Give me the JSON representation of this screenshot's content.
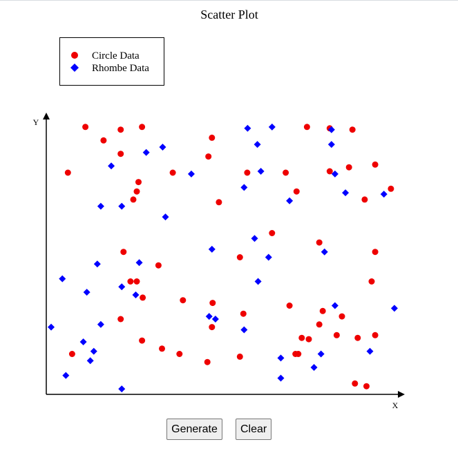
{
  "chart_data": {
    "type": "scatter",
    "title": "Scatter Plot",
    "xlabel": "X",
    "ylabel": "Y",
    "xlim": [
      0,
      100
    ],
    "ylim": [
      0,
      100
    ],
    "grid": false,
    "legend": "top-left",
    "series": [
      {
        "name": "Circle Data",
        "marker": "circle",
        "color": "#ee0000",
        "points": [
          [
            5.6,
            81.5
          ],
          [
            10.6,
            98.5
          ],
          [
            15.8,
            93.5
          ],
          [
            20.7,
            97.5
          ],
          [
            25.8,
            78
          ],
          [
            20.7,
            88.5
          ],
          [
            35.6,
            81.5
          ],
          [
            26.8,
            98.5
          ],
          [
            24.3,
            71.5
          ],
          [
            25.3,
            74.5
          ],
          [
            45.8,
            87.5
          ],
          [
            46.8,
            94.5
          ],
          [
            56.9,
            81.5
          ],
          [
            48.8,
            70.5
          ],
          [
            67.9,
            81.5
          ],
          [
            86.0,
            83.5
          ],
          [
            74.0,
            98.5
          ],
          [
            80.5,
            82
          ],
          [
            80.5,
            98
          ],
          [
            87.0,
            97.5
          ],
          [
            93.5,
            84.5
          ],
          [
            98.0,
            75.5
          ],
          [
            90.5,
            71.5
          ],
          [
            71.0,
            74.5
          ],
          [
            64.0,
            59.0
          ],
          [
            54.8,
            50.0
          ],
          [
            77.5,
            55.5
          ],
          [
            31.5,
            47.0
          ],
          [
            21.5,
            52.0
          ],
          [
            23.5,
            41.0
          ],
          [
            25.3,
            41.0
          ],
          [
            27.0,
            35.0
          ],
          [
            38.5,
            34.0
          ],
          [
            47.0,
            33.0
          ],
          [
            46.8,
            24.0
          ],
          [
            55.8,
            29.0
          ],
          [
            69.0,
            32.0
          ],
          [
            92.5,
            41.0
          ],
          [
            93.5,
            52.0
          ],
          [
            78.5,
            30.0
          ],
          [
            84.0,
            28.0
          ],
          [
            77.5,
            25.0
          ],
          [
            72.5,
            20.0
          ],
          [
            74.5,
            19.5
          ],
          [
            82.5,
            21.0
          ],
          [
            88.5,
            20.0
          ],
          [
            93.5,
            21.0
          ],
          [
            20.7,
            27.0
          ],
          [
            26.8,
            19.0
          ],
          [
            32.5,
            16.0
          ],
          [
            37.5,
            14.0
          ],
          [
            45.5,
            11.0
          ],
          [
            54.8,
            13.0
          ],
          [
            71.5,
            14.0
          ],
          [
            70.7,
            14.0
          ],
          [
            6.8,
            14.0
          ],
          [
            87.7,
            3.0
          ],
          [
            91.0,
            2.0
          ]
        ]
      },
      {
        "name": "Rhombe Data",
        "marker": "diamond",
        "color": "#0000ff",
        "points": [
          [
            18.0,
            84.0
          ],
          [
            28.0,
            89.0
          ],
          [
            32.7,
            91.0
          ],
          [
            40.9,
            81.0
          ],
          [
            57.0,
            98.0
          ],
          [
            59.8,
            92.0
          ],
          [
            64.0,
            98.5
          ],
          [
            60.8,
            82.0
          ],
          [
            56.0,
            76.0
          ],
          [
            69.0,
            71.0
          ],
          [
            81.0,
            97.5
          ],
          [
            81.0,
            92.0
          ],
          [
            82.0,
            81.0
          ],
          [
            85.0,
            74.0
          ],
          [
            96.0,
            73.5
          ],
          [
            15.0,
            69.0
          ],
          [
            21.0,
            69.0
          ],
          [
            33.5,
            65.0
          ],
          [
            46.8,
            53.0
          ],
          [
            59.0,
            57.0
          ],
          [
            63.0,
            50.0
          ],
          [
            79.0,
            52.0
          ],
          [
            60.0,
            41.0
          ],
          [
            14.0,
            47.5
          ],
          [
            26.0,
            48.0
          ],
          [
            4.0,
            42.0
          ],
          [
            11.0,
            37.0
          ],
          [
            21.0,
            39.0
          ],
          [
            25.0,
            36.0
          ],
          [
            15.0,
            25.0
          ],
          [
            46.0,
            28.0
          ],
          [
            47.8,
            27.0
          ],
          [
            56.0,
            23.0
          ],
          [
            82.0,
            32.0
          ],
          [
            99.0,
            31.0
          ],
          [
            0.8,
            24.0
          ],
          [
            10.0,
            18.5
          ],
          [
            13.0,
            15.0
          ],
          [
            12.0,
            11.5
          ],
          [
            5.0,
            6.0
          ],
          [
            21.0,
            1.0
          ],
          [
            66.5,
            12.5
          ],
          [
            78.0,
            14.0
          ],
          [
            76.0,
            9.0
          ],
          [
            92.0,
            15.0
          ],
          [
            66.5,
            5.0
          ]
        ]
      }
    ]
  },
  "controls": {
    "generate_label": "Generate",
    "clear_label": "Clear"
  }
}
